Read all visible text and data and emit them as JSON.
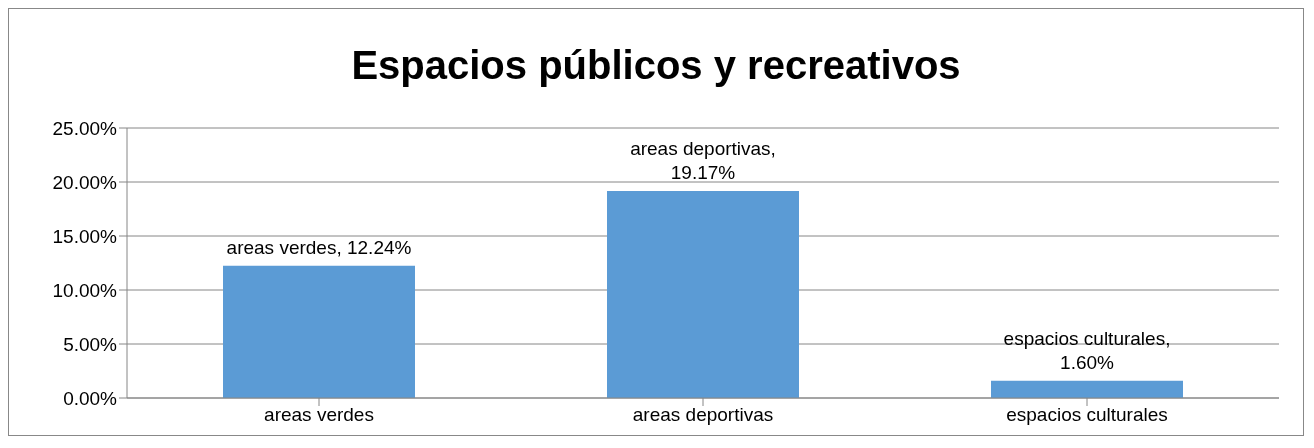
{
  "chart_data": {
    "type": "bar",
    "title": "Espacios públicos y recreativos",
    "categories": [
      "areas verdes",
      "areas deportivas",
      "espacios culturales"
    ],
    "values": [
      12.24,
      19.17,
      1.6
    ],
    "value_labels": [
      "areas verdes, 12.24%",
      "areas deportivas, 19.17%",
      "espacios culturales, 1.60%"
    ],
    "color": "#5b9bd5",
    "ylim": [
      0,
      25
    ],
    "yticks": [
      {
        "value": 0,
        "label": "0.00%"
      },
      {
        "value": 5,
        "label": "5.00%"
      },
      {
        "value": 10,
        "label": "10.00%"
      },
      {
        "value": 15,
        "label": "15.00%"
      },
      {
        "value": 20,
        "label": "20.00%"
      },
      {
        "value": 25,
        "label": "25.00%"
      }
    ],
    "grid": "y"
  }
}
